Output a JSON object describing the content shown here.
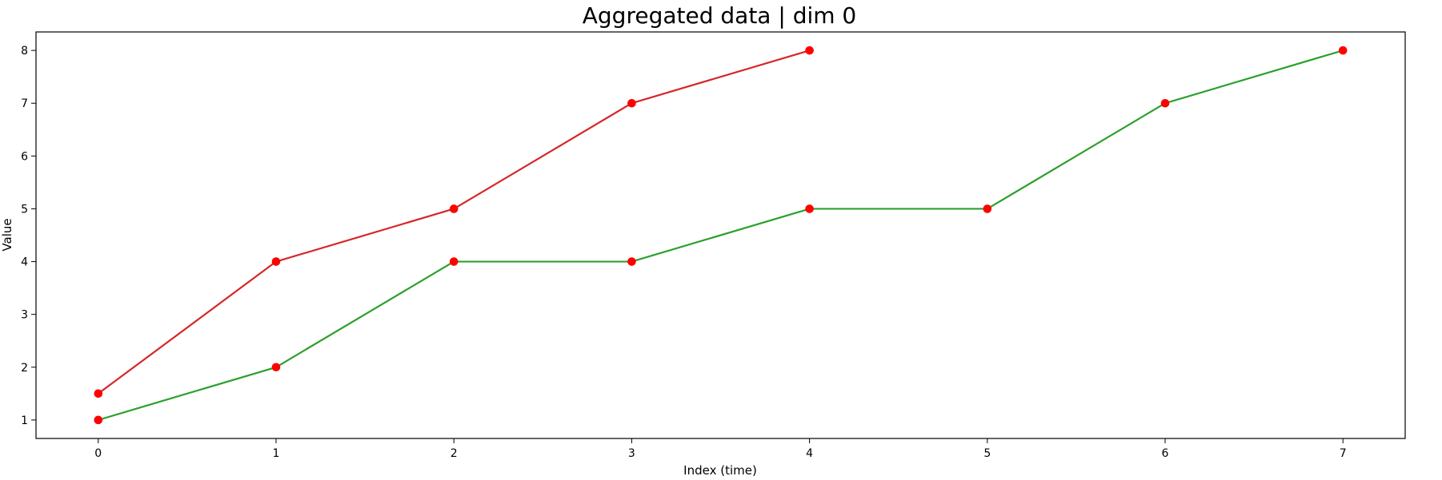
{
  "chart_data": {
    "type": "line",
    "title": "Aggregated data | dim 0",
    "xlabel": "Index (time)",
    "ylabel": "Value",
    "xlim": [
      -0.35,
      7.35
    ],
    "ylim": [
      0.65,
      8.35
    ],
    "x_ticks": [
      0,
      1,
      2,
      3,
      4,
      5,
      6,
      7
    ],
    "y_ticks": [
      1,
      2,
      3,
      4,
      5,
      6,
      7,
      8
    ],
    "grid": false,
    "legend": "none",
    "marker_color": "#ff0000",
    "series": [
      {
        "color": "#d62728",
        "x": [
          0,
          1,
          2,
          3,
          4
        ],
        "values": [
          1.5,
          4,
          5,
          7,
          8
        ]
      },
      {
        "color": "#2ca02c",
        "x": [
          0,
          1,
          2,
          3,
          4,
          5,
          6,
          7
        ],
        "values": [
          1,
          2,
          4,
          4,
          5,
          5,
          7,
          8
        ]
      }
    ]
  }
}
